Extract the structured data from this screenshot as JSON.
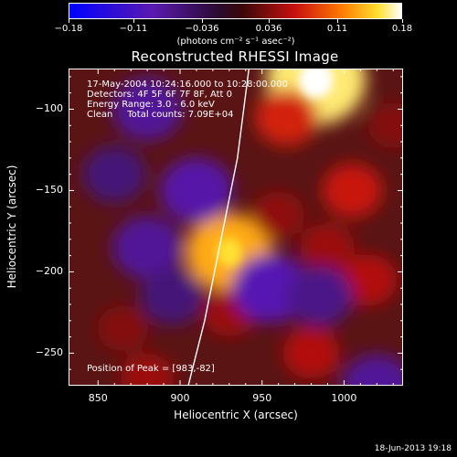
{
  "colorbar": {
    "ticks": [
      "-0.18",
      "-0.11",
      "-0.036",
      "0.036",
      "0.11",
      "0.18"
    ],
    "tick_values": [
      -0.18,
      -0.11,
      -0.036,
      0.036,
      0.11,
      0.18
    ],
    "range": [
      -0.18,
      0.18
    ],
    "units": "(photons cm⁻² s⁻¹ asec⁻²)"
  },
  "info": {
    "line1": "17-May-2004 10:24:16.000 to 10:28:00.000",
    "line2": "Detectors: 4F 5F 6F 7F 8F, Att 0",
    "line3": "Energy Range: 3.0 - 6.0 keV",
    "line4": "Clean     Total counts: 7.09E+04",
    "peak": "Position of Peak = [983,-82]"
  },
  "timestamp": "18-Jun-2013 19:18",
  "chart_data": {
    "type": "heatmap",
    "title": "Reconstructed RHESSI Image",
    "xlabel": "Heliocentric X (arcsec)",
    "ylabel": "Heliocentric Y (arcsec)",
    "xlim": [
      832,
      1036
    ],
    "ylim": [
      -270,
      -75
    ],
    "xticks": [
      850,
      900,
      950,
      1000
    ],
    "yticks": [
      -100,
      -150,
      -200,
      -250
    ],
    "colormap": "red-temperature (blue-violet-black-red-yellow-white)",
    "sources": [
      {
        "x": 983,
        "y": -82,
        "value": 0.18
      },
      {
        "x": 930,
        "y": -188,
        "value": 0.14
      },
      {
        "x": 965,
        "y": -105,
        "value": 0.07
      },
      {
        "x": 1005,
        "y": -150,
        "value": 0.06
      },
      {
        "x": 1015,
        "y": -205,
        "value": 0.05
      },
      {
        "x": 980,
        "y": -250,
        "value": 0.05
      },
      {
        "x": 880,
        "y": -265,
        "value": 0.04
      },
      {
        "x": 930,
        "y": -225,
        "value": 0.04
      },
      {
        "x": 865,
        "y": -235,
        "value": 0.03
      },
      {
        "x": 990,
        "y": -185,
        "value": 0.04
      },
      {
        "x": 960,
        "y": -165,
        "value": 0.035
      },
      {
        "x": 1030,
        "y": -110,
        "value": 0.03
      },
      {
        "x": 880,
        "y": -100,
        "value": -0.09
      },
      {
        "x": 910,
        "y": -150,
        "value": -0.1
      },
      {
        "x": 880,
        "y": -185,
        "value": -0.09
      },
      {
        "x": 860,
        "y": -140,
        "value": -0.07
      },
      {
        "x": 955,
        "y": -210,
        "value": -0.11
      },
      {
        "x": 985,
        "y": -215,
        "value": -0.08
      },
      {
        "x": 1020,
        "y": -270,
        "value": -0.09
      },
      {
        "x": 895,
        "y": -215,
        "value": -0.07
      }
    ],
    "limb_curve": [
      [
        905,
        -270
      ],
      [
        915,
        -230
      ],
      [
        925,
        -180
      ],
      [
        935,
        -130
      ],
      [
        942,
        -75
      ]
    ],
    "peak": [
      983,
      -82
    ]
  }
}
